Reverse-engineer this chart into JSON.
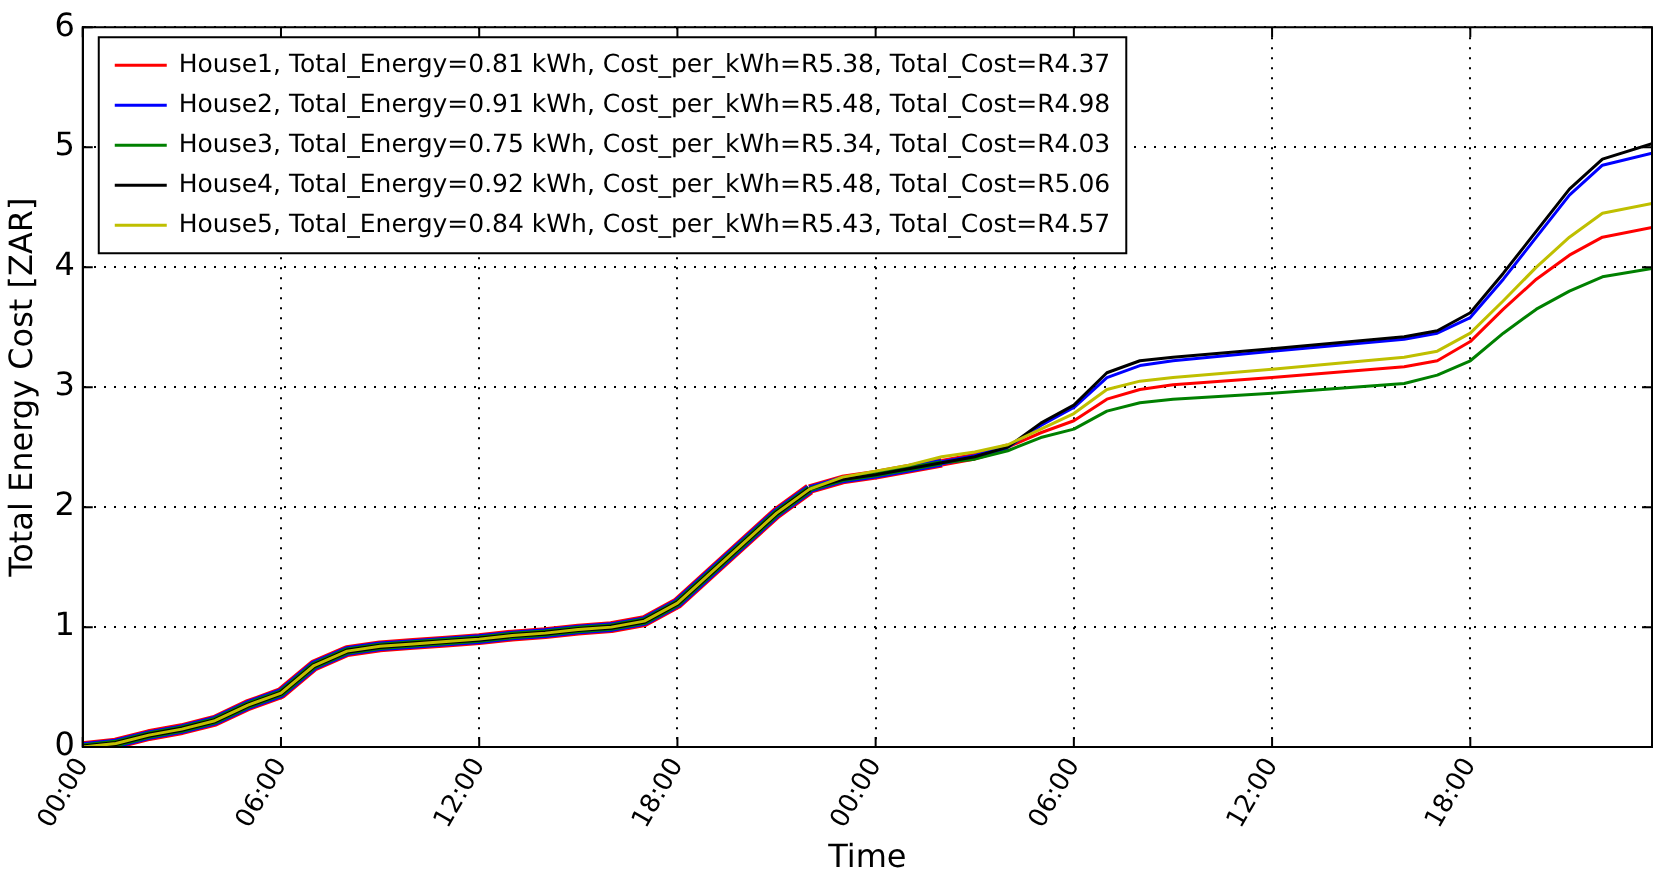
{
  "chart_data": {
    "type": "line",
    "xlabel": "Time",
    "ylabel": "Total Energy Cost [ZAR]",
    "x": [
      "--01-01T00:00",
      "--01-01T01:00",
      "--01-01T02:00",
      "--01-01T03:00",
      "--01-01T04:00",
      "--01-01T05:00",
      "--01-01T06:00",
      "--01-01T07:00",
      "--01-01T08:00",
      "--01-01T09:00",
      "--01-01T10:00",
      "--01-01T11:00",
      "--01-01T12:00",
      "--01-01T13:00",
      "--01-01T14:00",
      "--01-01T15:00",
      "--01-01T16:00",
      "--01-01T17:00",
      "--01-01T18:00",
      "--01-01T19:00",
      "--01-01T20:00",
      "--01-01T21:00",
      "--01-01T22:00",
      "--01-01T23:00",
      "--01-02T00:00",
      "--01-02T01:00",
      "--01-02T02:00",
      "--01-02T03:00",
      "--01-02T04:00",
      "--01-02T05:00",
      "--01-02T06:00",
      "--01-02T07:00",
      "--01-02T08:00",
      "--01-02T09:00",
      "--01-02T12:00",
      "--01-02T16:00",
      "--01-02T17:00",
      "--01-02T18:00",
      "--01-02T19:00",
      "--01-02T20:00",
      "--01-02T21:00",
      "--01-02T22:00",
      "--01-02T23:30"
    ],
    "series": [
      {
        "name": "House1, Total_Energy=0.81 kWh, Cost_per_kWh=R5.38, Total_Cost=R4.37",
        "color": "#ff0000",
        "values": [
          0,
          0.03,
          0.1,
          0.15,
          0.22,
          0.35,
          0.45,
          0.68,
          0.8,
          0.84,
          0.86,
          0.88,
          0.9,
          0.93,
          0.95,
          0.98,
          1.0,
          1.05,
          1.2,
          1.45,
          1.7,
          1.95,
          2.15,
          2.23,
          2.27,
          2.32,
          2.37,
          2.42,
          2.5,
          2.62,
          2.72,
          2.9,
          2.98,
          3.02,
          3.08,
          3.17,
          3.22,
          3.38,
          3.65,
          3.9,
          4.1,
          4.25,
          4.33
        ]
      },
      {
        "name": "House2, Total_Energy=0.91 kWh, Cost_per_kWh=R5.48, Total_Cost=R4.98",
        "color": "#0000ff",
        "values": [
          0,
          0.03,
          0.1,
          0.15,
          0.22,
          0.35,
          0.45,
          0.68,
          0.8,
          0.84,
          0.86,
          0.88,
          0.9,
          0.93,
          0.95,
          0.98,
          1.0,
          1.05,
          1.2,
          1.45,
          1.7,
          1.95,
          2.15,
          2.23,
          2.27,
          2.32,
          2.37,
          2.42,
          2.5,
          2.68,
          2.83,
          3.08,
          3.18,
          3.22,
          3.3,
          3.4,
          3.45,
          3.58,
          3.9,
          4.25,
          4.6,
          4.85,
          4.95
        ]
      },
      {
        "name": "House3, Total_Energy=0.75 kWh, Cost_per_kWh=R5.34, Total_Cost=R4.03",
        "color": "#008000",
        "values": [
          0,
          0.03,
          0.1,
          0.15,
          0.22,
          0.35,
          0.45,
          0.68,
          0.8,
          0.84,
          0.86,
          0.88,
          0.9,
          0.93,
          0.95,
          0.98,
          1.0,
          1.05,
          1.2,
          1.45,
          1.7,
          1.95,
          2.15,
          2.23,
          2.27,
          2.32,
          2.37,
          2.4,
          2.47,
          2.58,
          2.65,
          2.8,
          2.87,
          2.9,
          2.95,
          3.03,
          3.1,
          3.22,
          3.45,
          3.65,
          3.8,
          3.92,
          3.99
        ]
      },
      {
        "name": "House4, Total_Energy=0.92 kWh, Cost_per_kWh=R5.48, Total_Cost=R5.06",
        "color": "#000000",
        "values": [
          0,
          0.03,
          0.1,
          0.15,
          0.22,
          0.35,
          0.45,
          0.68,
          0.8,
          0.84,
          0.86,
          0.88,
          0.9,
          0.93,
          0.95,
          0.98,
          1.0,
          1.05,
          1.2,
          1.45,
          1.7,
          1.95,
          2.15,
          2.23,
          2.27,
          2.32,
          2.37,
          2.42,
          2.5,
          2.7,
          2.85,
          3.12,
          3.22,
          3.25,
          3.32,
          3.42,
          3.47,
          3.62,
          3.95,
          4.3,
          4.65,
          4.9,
          5.03
        ]
      },
      {
        "name": "House5, Total_Energy=0.84 kWh, Cost_per_kWh=R5.43, Total_Cost=R4.57",
        "color": "#bfbf00",
        "values": [
          0,
          0.03,
          0.1,
          0.15,
          0.22,
          0.35,
          0.45,
          0.68,
          0.8,
          0.84,
          0.86,
          0.88,
          0.9,
          0.93,
          0.95,
          0.98,
          1.0,
          1.05,
          1.2,
          1.45,
          1.7,
          1.95,
          2.15,
          2.25,
          2.3,
          2.35,
          2.42,
          2.46,
          2.52,
          2.65,
          2.78,
          2.98,
          3.05,
          3.08,
          3.15,
          3.25,
          3.3,
          3.45,
          3.72,
          4.0,
          4.25,
          4.45,
          4.53
        ]
      }
    ],
    "xlim": [
      "--01-01T00:00",
      "--01-02T23:30"
    ],
    "xticks": [
      {
        "value": "--01-01T00:00",
        "label": "00:00"
      },
      {
        "value": "--01-01T06:00",
        "label": "06:00"
      },
      {
        "value": "--01-01T12:00",
        "label": "12:00"
      },
      {
        "value": "--01-01T18:00",
        "label": "18:00"
      },
      {
        "value": "--01-02T00:00",
        "label": "00:00"
      },
      {
        "value": "--01-02T06:00",
        "label": "06:00"
      },
      {
        "value": "--01-02T12:00",
        "label": "12:00"
      },
      {
        "value": "--01-02T18:00",
        "label": "18:00"
      }
    ],
    "ylim": [
      0,
      6
    ],
    "yticks": [
      0,
      1,
      2,
      3,
      4,
      5,
      6
    ],
    "grid": true,
    "legend": "top left",
    "marker": "none",
    "line_style": "solid"
  }
}
